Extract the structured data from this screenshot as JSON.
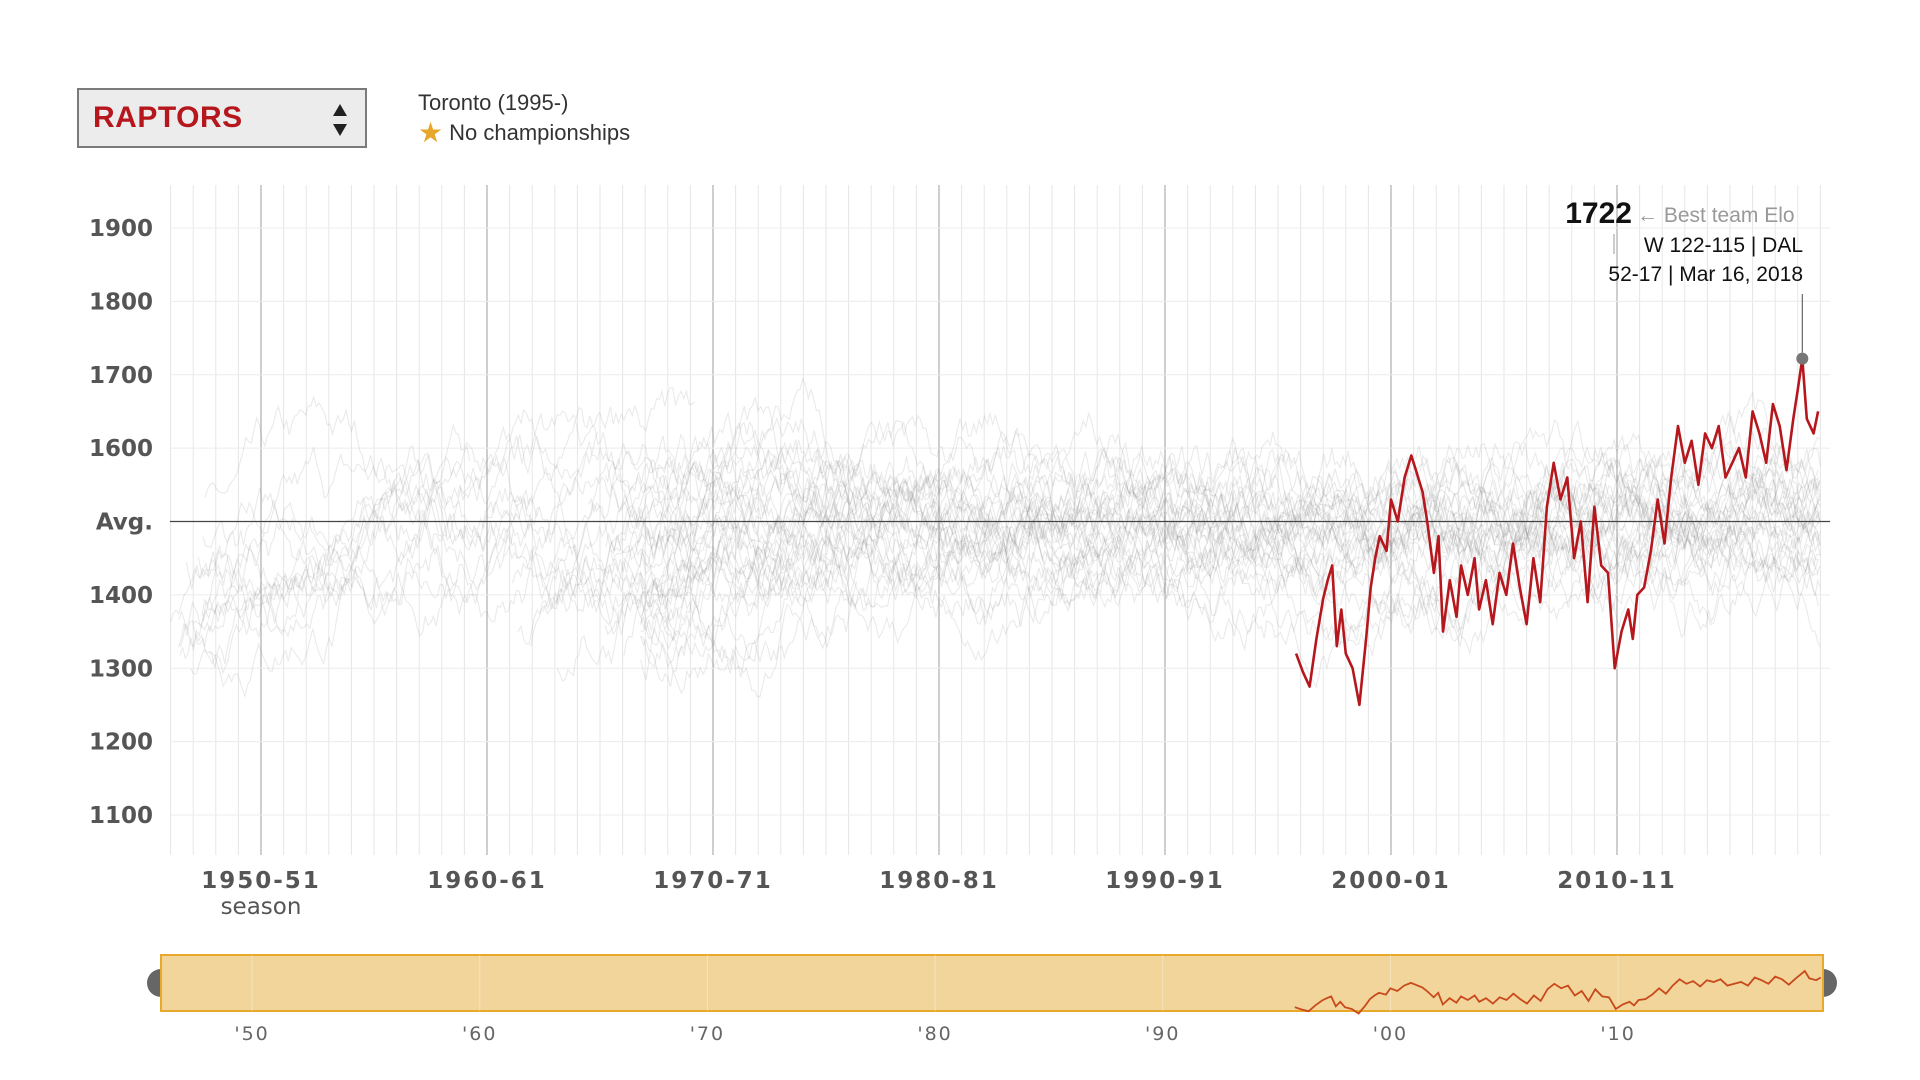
{
  "controls": {
    "team_select_value": "RAPTORS",
    "team_location": "Toronto (1995-)",
    "championships": "No championships"
  },
  "colors": {
    "highlight": "#b5171d",
    "background_lines": "#8a8a8a",
    "brush_fill": "#f2d59b",
    "brush_border": "#e8a92a",
    "brush_line": "#c8491b",
    "star": "#e6a72a"
  },
  "chart_data": {
    "type": "line",
    "xlabel": "season",
    "ylabel": "",
    "y_ticks": [
      "1900",
      "1800",
      "1700",
      "1600",
      "Avg.",
      "1400",
      "1300",
      "1200",
      "1100"
    ],
    "y_tick_values": [
      1900,
      1800,
      1700,
      1600,
      1500,
      1400,
      1300,
      1200,
      1100
    ],
    "ylim": [
      1060,
      1960
    ],
    "x_ticks": [
      "1950-51",
      "1960-61",
      "1970-71",
      "1980-81",
      "1990-91",
      "2000-01",
      "2010-11"
    ],
    "x_tick_years": [
      1950,
      1960,
      1970,
      1980,
      1990,
      2000,
      2010
    ],
    "xlim": [
      1946,
      2019
    ],
    "avg_value": 1500,
    "grid": true,
    "brush_ticks": [
      "'50",
      "'60",
      "'70",
      "'80",
      "'90",
      "'00",
      "'10"
    ],
    "annotation": {
      "value": "1722",
      "label": "← Best team Elo",
      "game": "W 122-115 | DAL",
      "record_date": "52-17 | Mar 16, 2018",
      "x": 2018.2,
      "y": 1722
    },
    "series": [
      {
        "name": "RAPTORS",
        "x": [
          1995.8,
          1996.1,
          1996.4,
          1996.7,
          1997.0,
          1997.2,
          1997.4,
          1997.6,
          1997.8,
          1998.0,
          1998.3,
          1998.6,
          1998.9,
          1999.1,
          1999.3,
          1999.5,
          1999.8,
          2000.0,
          2000.3,
          2000.6,
          2000.9,
          2001.1,
          2001.4,
          2001.6,
          2001.9,
          2002.1,
          2002.3,
          2002.6,
          2002.9,
          2003.1,
          2003.4,
          2003.7,
          2003.9,
          2004.2,
          2004.5,
          2004.8,
          2005.1,
          2005.4,
          2005.7,
          2006.0,
          2006.3,
          2006.6,
          2006.9,
          2007.2,
          2007.5,
          2007.8,
          2008.1,
          2008.4,
          2008.7,
          2009.0,
          2009.3,
          2009.6,
          2009.9,
          2010.2,
          2010.5,
          2010.7,
          2010.9,
          2011.2,
          2011.5,
          2011.8,
          2012.1,
          2012.4,
          2012.7,
          2013.0,
          2013.3,
          2013.6,
          2013.9,
          2014.2,
          2014.5,
          2014.8,
          2015.1,
          2015.4,
          2015.7,
          2016.0,
          2016.3,
          2016.6,
          2016.9,
          2017.2,
          2017.5,
          2017.8,
          2018.0,
          2018.2,
          2018.4,
          2018.7,
          2018.9
        ],
        "values": [
          1320,
          1295,
          1275,
          1340,
          1395,
          1420,
          1440,
          1330,
          1380,
          1320,
          1300,
          1250,
          1340,
          1410,
          1450,
          1480,
          1460,
          1530,
          1500,
          1560,
          1590,
          1570,
          1540,
          1500,
          1430,
          1480,
          1350,
          1420,
          1370,
          1440,
          1400,
          1450,
          1380,
          1420,
          1360,
          1430,
          1400,
          1470,
          1410,
          1360,
          1450,
          1390,
          1520,
          1580,
          1530,
          1560,
          1450,
          1500,
          1390,
          1520,
          1440,
          1430,
          1300,
          1350,
          1380,
          1340,
          1400,
          1410,
          1460,
          1530,
          1470,
          1560,
          1630,
          1580,
          1610,
          1550,
          1620,
          1600,
          1630,
          1560,
          1580,
          1600,
          1560,
          1650,
          1620,
          1580,
          1660,
          1630,
          1570,
          1640,
          1680,
          1722,
          1640,
          1620,
          1650
        ]
      }
    ]
  }
}
